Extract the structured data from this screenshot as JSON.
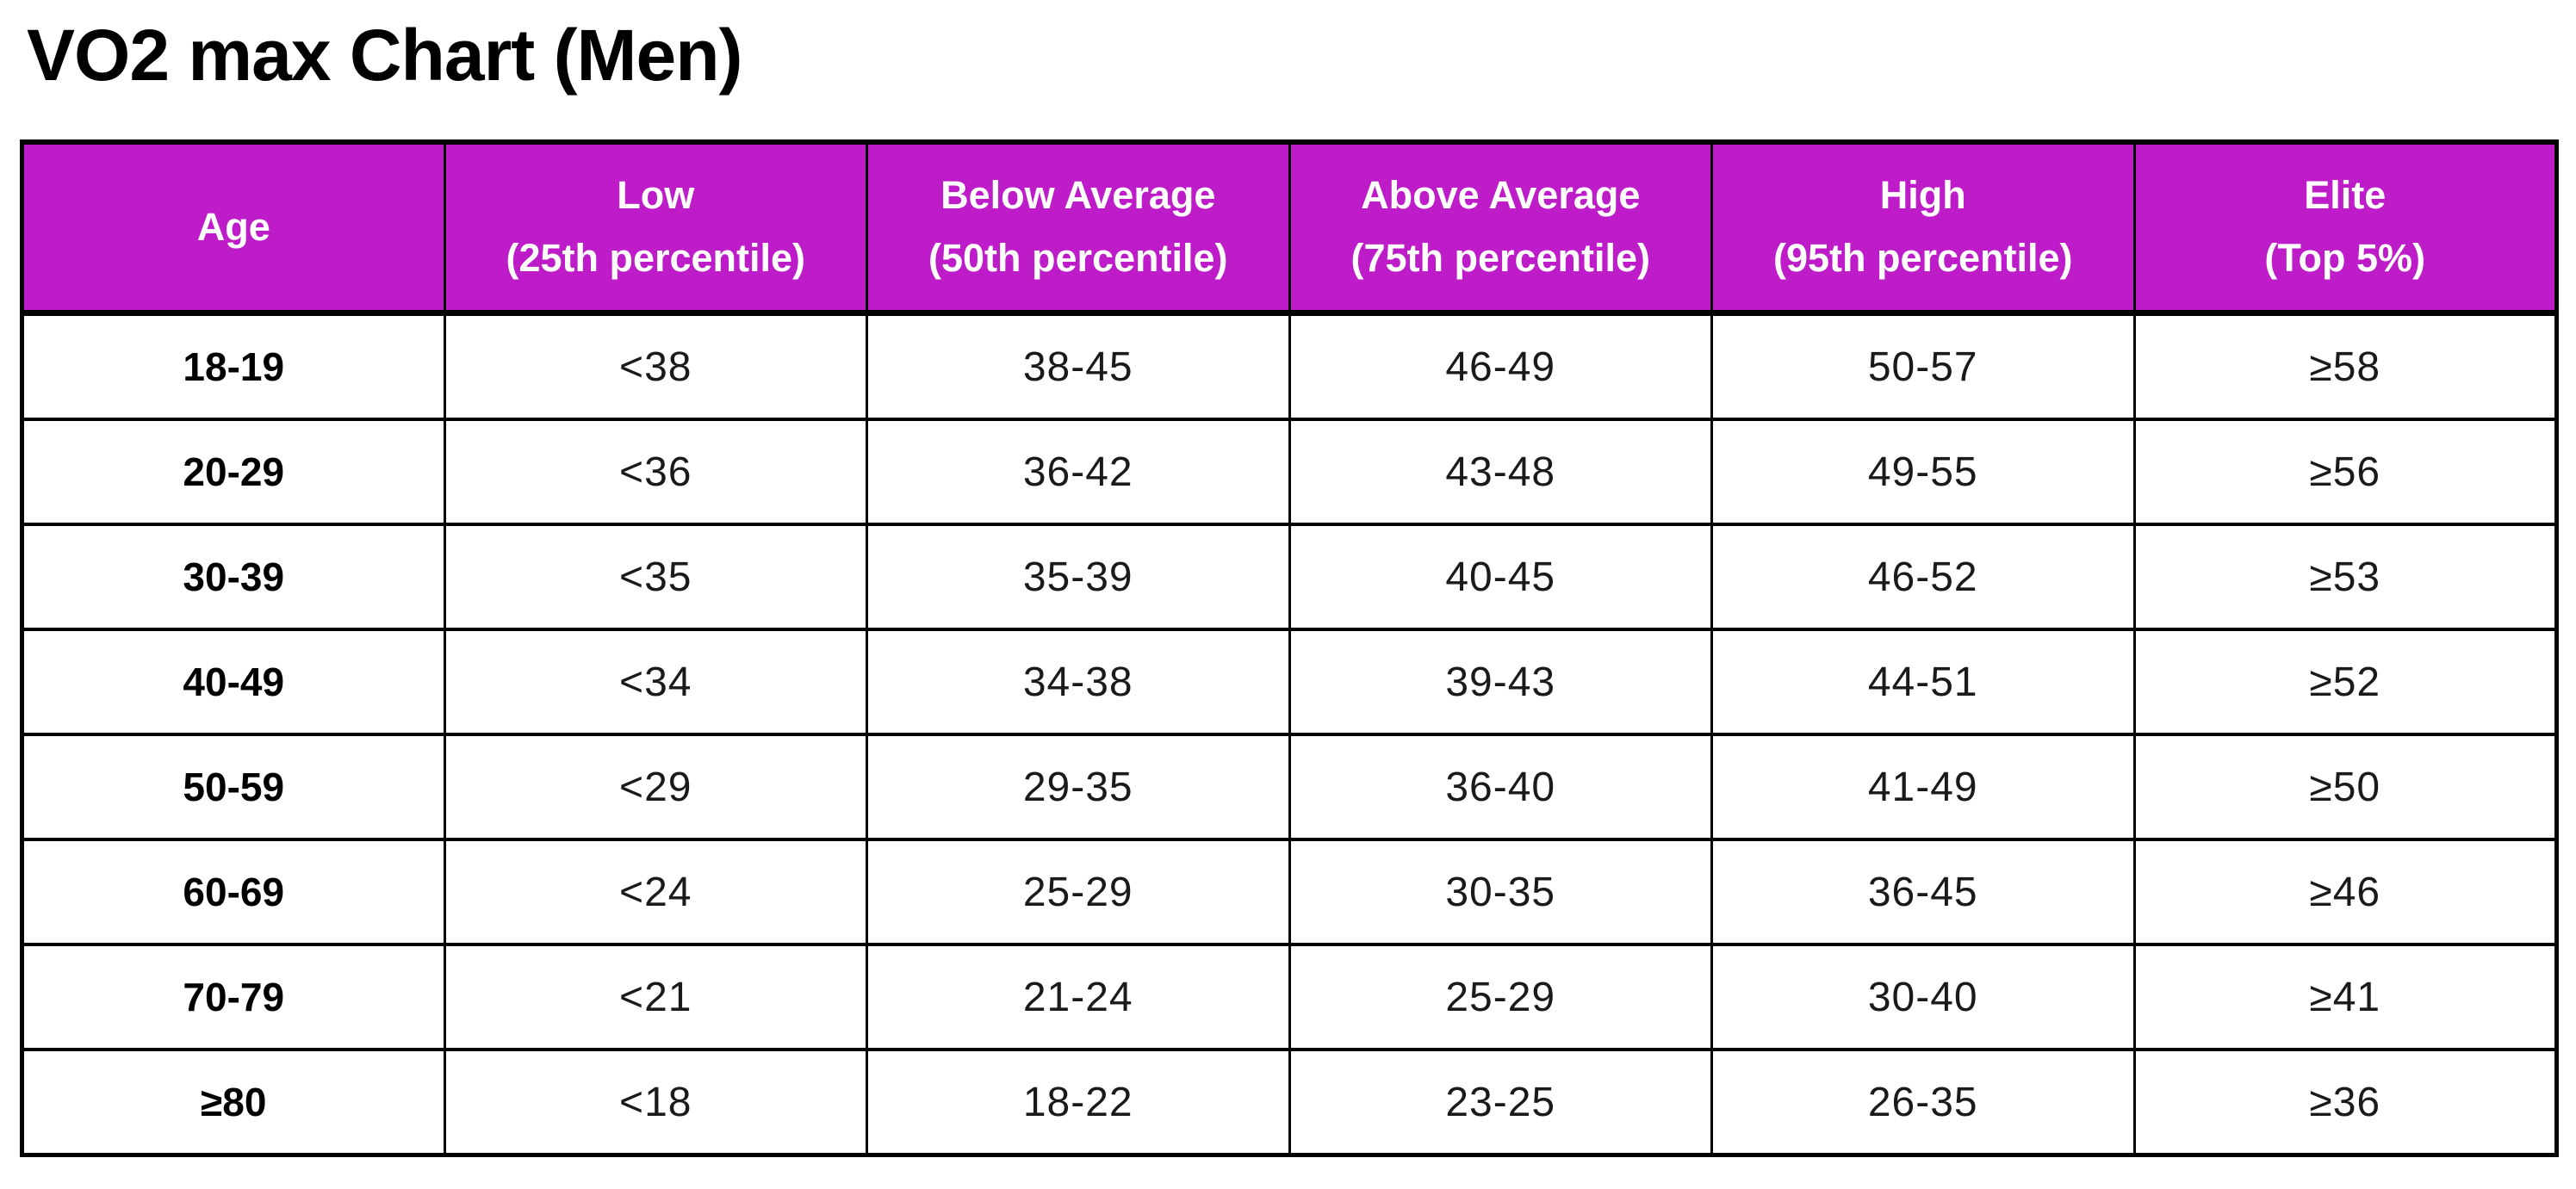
{
  "title": "VO2 max Chart (Men)",
  "colors": {
    "header_bg": "#be1cc8",
    "header_text": "#ffffff",
    "body_text": "#1a1a1a",
    "border": "#000000",
    "page_bg": "#ffffff"
  },
  "table": {
    "headers": [
      {
        "label": "Age",
        "sublabel": ""
      },
      {
        "label": "Low",
        "sublabel": "(25th percentile)"
      },
      {
        "label": "Below Average",
        "sublabel": "(50th percentile)"
      },
      {
        "label": "Above Average",
        "sublabel": "(75th percentile)"
      },
      {
        "label": "High",
        "sublabel": "(95th percentile)"
      },
      {
        "label": "Elite",
        "sublabel": "(Top 5%)"
      }
    ]
  },
  "chart_data": {
    "type": "table",
    "title": "VO2 max Chart (Men)",
    "columns": [
      "Age",
      "Low (25th percentile)",
      "Below Average (50th percentile)",
      "Above Average (75th percentile)",
      "High (95th percentile)",
      "Elite (Top 5%)"
    ],
    "rows": [
      [
        "18-19",
        "<38",
        "38-45",
        "46-49",
        "50-57",
        "≥58"
      ],
      [
        "20-29",
        "<36",
        "36-42",
        "43-48",
        "49-55",
        "≥56"
      ],
      [
        "30-39",
        "<35",
        "35-39",
        "40-45",
        "46-52",
        "≥53"
      ],
      [
        "40-49",
        "<34",
        "34-38",
        "39-43",
        "44-51",
        "≥52"
      ],
      [
        "50-59",
        "<29",
        "29-35",
        "36-40",
        "41-49",
        "≥50"
      ],
      [
        "60-69",
        "<24",
        "25-29",
        "30-35",
        "36-45",
        "≥46"
      ],
      [
        "70-79",
        "<21",
        "21-24",
        "25-29",
        "30-40",
        "≥41"
      ],
      [
        "≥80",
        "<18",
        "18-22",
        "23-25",
        "26-35",
        "≥36"
      ]
    ]
  }
}
